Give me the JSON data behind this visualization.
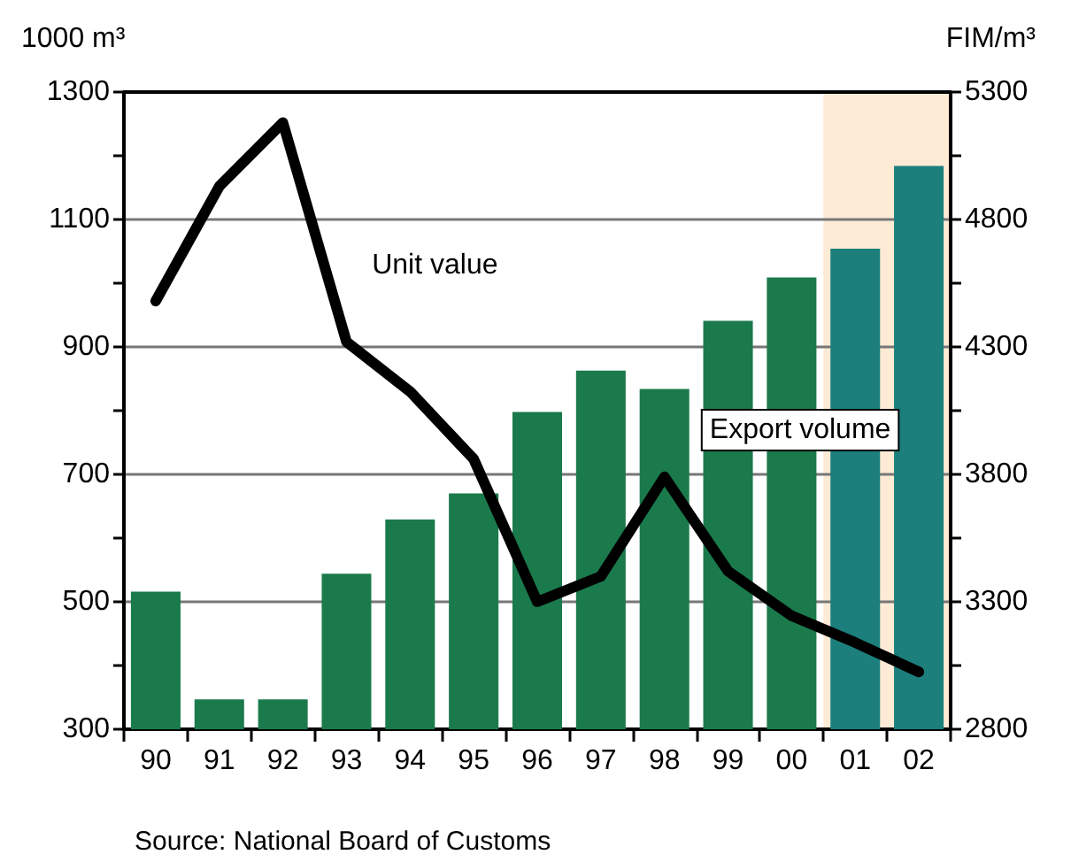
{
  "chart_data": {
    "type": "bar",
    "ylabel": "1000 m³",
    "y2label": "FIM/m³",
    "categories": [
      "90",
      "91",
      "92",
      "93",
      "94",
      "95",
      "96",
      "97",
      "98",
      "99",
      "00",
      "01",
      "02"
    ],
    "series": [
      {
        "name": "Export volume",
        "colors": [
          "#1b7a4c",
          "#1b7a4c",
          "#1b7a4c",
          "#1b7a4c",
          "#1b7a4c",
          "#1b7a4c",
          "#1b7a4c",
          "#1b7a4c",
          "#1b7a4c",
          "#1b7a4c",
          "#1b7a4c",
          "#1c7f7c",
          "#1c7f7c"
        ],
        "values": [
          516,
          347,
          347,
          544,
          629,
          670,
          798,
          863,
          834,
          941,
          1009,
          1054,
          1184
        ]
      },
      {
        "name": "Unit value",
        "type": "line",
        "axis": "y2",
        "color": "#000000",
        "values": [
          4480,
          4930,
          5180,
          4320,
          4125,
          3860,
          3300,
          3400,
          3790,
          3420,
          3245,
          3140,
          3025
        ]
      }
    ],
    "ylim": [
      300,
      1300
    ],
    "yticks": [
      300,
      {
        "value": 400,
        "label": null
      },
      500,
      {
        "value": 600,
        "label": null
      },
      700,
      {
        "value": 800,
        "label": null
      },
      900,
      {
        "value": 1000,
        "label": null
      },
      1100,
      {
        "value": 1200,
        "label": null
      },
      1300
    ],
    "y2lim": [
      2800,
      5300
    ],
    "y2ticks": [
      2800,
      {
        "value": 3050,
        "label": null
      },
      3300,
      {
        "value": 3550,
        "label": null
      },
      3800,
      {
        "value": 4050,
        "label": null
      },
      4300,
      {
        "value": 4550,
        "label": null
      },
      4800,
      {
        "value": 5050,
        "label": null
      },
      5300
    ],
    "bands": [
      {
        "axis": "x",
        "from": "01",
        "to": "02",
        "color": "#fdebd6"
      }
    ],
    "grid": "y",
    "marker": "none",
    "line_style": "solid",
    "annotations": [
      "Source: National Board of Customs"
    ]
  }
}
